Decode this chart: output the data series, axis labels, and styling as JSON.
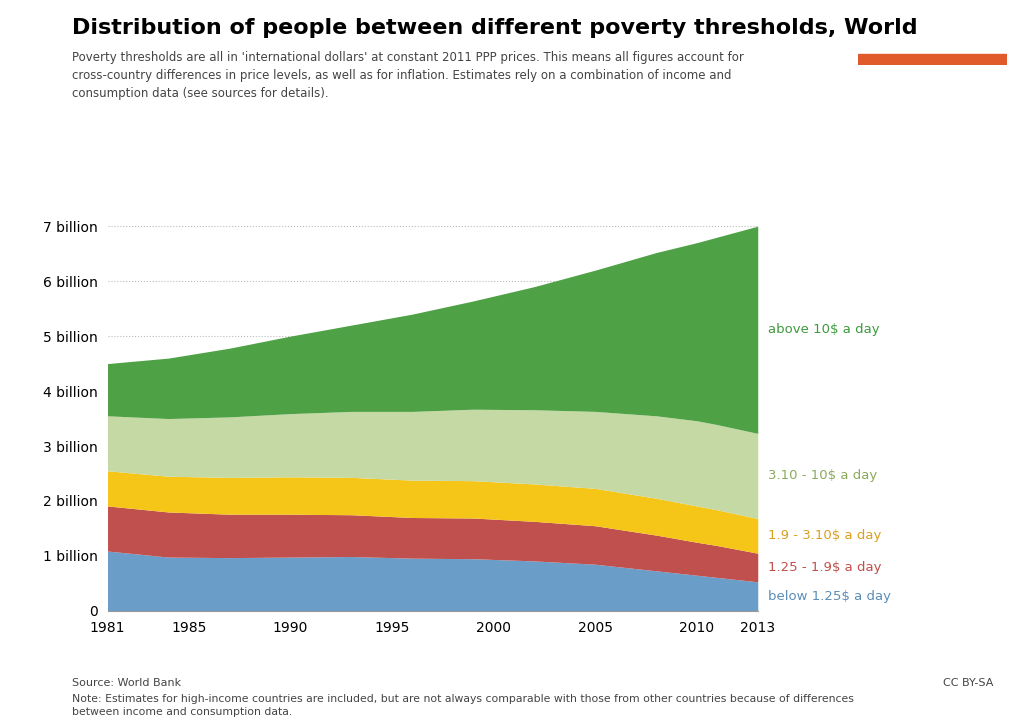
{
  "title": "Distribution of people between different poverty thresholds, World",
  "subtitle": "Poverty thresholds are all in 'international dollars' at constant 2011 PPP prices. This means all figures account for\ncross-country differences in price levels, as well as for inflation. Estimates rely on a combination of income and\nconsumption data (see sources for details).",
  "source_text": "Source: World Bank",
  "license_text": "CC BY-SA",
  "note_text": "Note: Estimates for high-income countries are included, but are not always comparable with those from other countries because of differences\nbetween income and consumption data.",
  "years": [
    1981,
    1984,
    1987,
    1990,
    1993,
    1996,
    1999,
    2002,
    2005,
    2008,
    2010,
    2011,
    2012,
    2013
  ],
  "below_125": [
    1.09,
    0.98,
    0.97,
    0.98,
    0.99,
    0.96,
    0.95,
    0.91,
    0.85,
    0.73,
    0.65,
    0.61,
    0.57,
    0.53
  ],
  "r125_190": [
    0.82,
    0.82,
    0.79,
    0.78,
    0.76,
    0.74,
    0.74,
    0.72,
    0.7,
    0.65,
    0.6,
    0.58,
    0.55,
    0.52
  ],
  "r190_310": [
    0.64,
    0.65,
    0.67,
    0.68,
    0.68,
    0.68,
    0.68,
    0.68,
    0.68,
    0.67,
    0.66,
    0.65,
    0.64,
    0.63
  ],
  "r310_10": [
    1.0,
    1.05,
    1.1,
    1.15,
    1.2,
    1.25,
    1.3,
    1.35,
    1.4,
    1.5,
    1.55,
    1.55,
    1.55,
    1.55
  ],
  "above_10": [
    0.95,
    1.1,
    1.25,
    1.41,
    1.57,
    1.77,
    1.97,
    2.24,
    2.57,
    2.97,
    3.24,
    3.41,
    3.59,
    3.77
  ],
  "colors": {
    "below_125": "#6A9DC8",
    "r125_190": "#C0504D",
    "r190_310": "#F5C518",
    "r310_10": "#C5D9A4",
    "above_10": "#4EA145"
  },
  "labels": {
    "below_125": "below 1.25$ a day",
    "r125_190": "1.25 - 1.9$ a day",
    "r190_310": "1.9 - 3.10$ a day",
    "r310_10": "3.10 - 10$ a day",
    "above_10": "above 10$ a day"
  },
  "label_colors": {
    "below_125": "#5B8DB8",
    "r125_190": "#C0504D",
    "r190_310": "#DAA020",
    "r310_10": "#8BAA5C",
    "above_10": "#3D9A3D"
  },
  "yticks": [
    0,
    1,
    2,
    3,
    4,
    5,
    6,
    7
  ],
  "ytick_labels": [
    "0",
    "1 billion",
    "2 billion",
    "3 billion",
    "4 billion",
    "5 billion",
    "6 billion",
    "7 billion"
  ],
  "xticks": [
    1981,
    1985,
    1990,
    1995,
    2000,
    2005,
    2010,
    2013
  ],
  "bg_color": "#FFFFFF",
  "plot_bg_color": "#FFFFFF",
  "grid_color": "#BBBBBB",
  "owid_box_bg": "#3D4B6B",
  "owid_box_accent": "#E05A2B"
}
